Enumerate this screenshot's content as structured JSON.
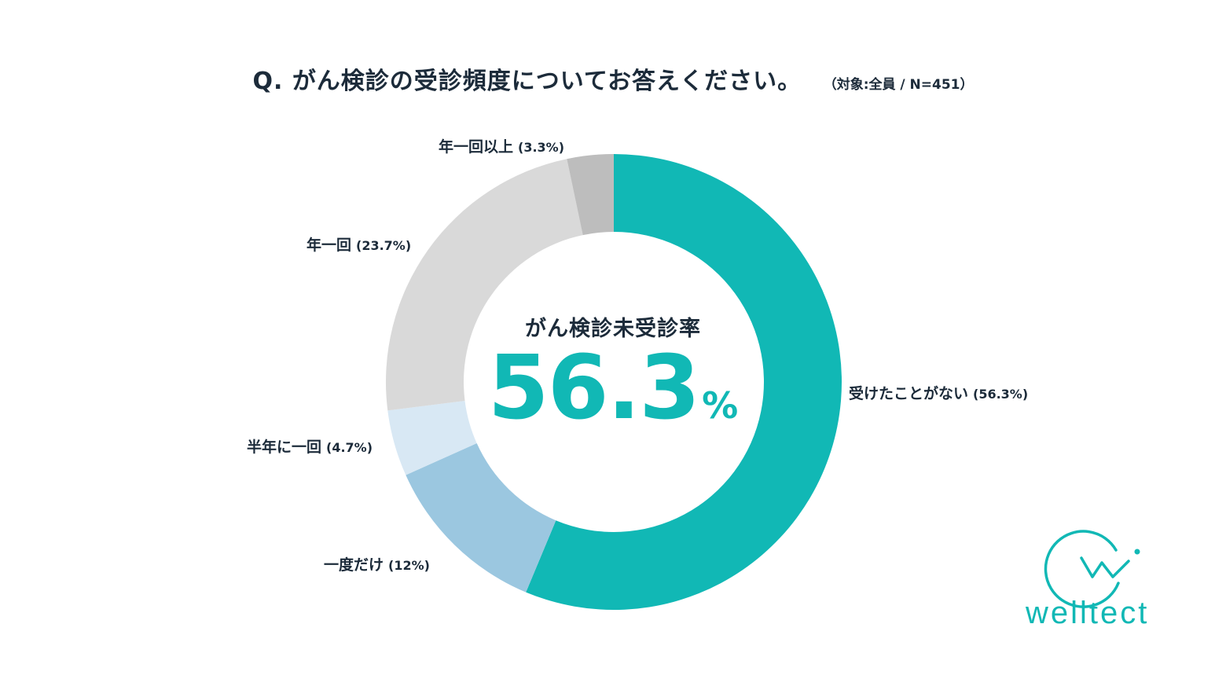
{
  "title": "Q. がん検診の受診頻度についてお答えください。",
  "subtitle": "（対象:全員 / N=451）",
  "center": {
    "caption": "がん検診未受診率",
    "value": "56.3",
    "unit": "%"
  },
  "brand": "welltect",
  "colors": {
    "accent": "#11b8b5",
    "never": "#11b8b5",
    "once": "#9bc7e0",
    "half_year": "#d8e8f4",
    "yearly": "#d9d9d9",
    "more_than_yearly": "#bdbdbd"
  },
  "chart_data": {
    "type": "pie",
    "donut": true,
    "slices": [
      {
        "label": "受けたことがない",
        "pct_label": "(56.3%)",
        "value": 56.3,
        "color": "#11b8b5"
      },
      {
        "label": "一度だけ",
        "pct_label": "(12%)",
        "value": 12,
        "color": "#9bc7e0"
      },
      {
        "label": "半年に一回",
        "pct_label": "(4.7%)",
        "value": 4.7,
        "color": "#d8e8f4"
      },
      {
        "label": "年一回",
        "pct_label": "(23.7%)",
        "value": 23.7,
        "color": "#d9d9d9"
      },
      {
        "label": "年一回以上",
        "pct_label": "(3.3%)",
        "value": 3.3,
        "color": "#bdbdbd"
      }
    ]
  }
}
